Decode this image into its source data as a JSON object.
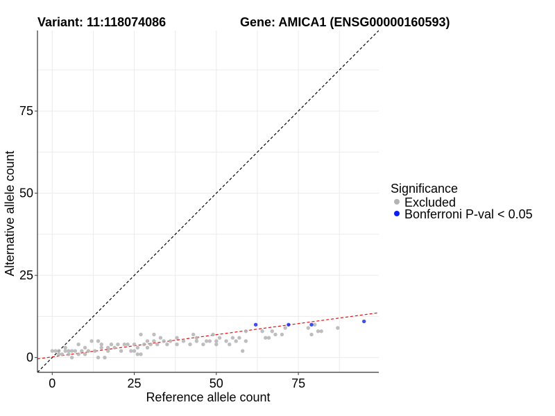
{
  "titles": {
    "variant": "Variant: 11:118074086",
    "gene": "Gene: AMICA1 (ENSG00000160593)"
  },
  "colors": {
    "excluded": "#b3b3b3",
    "significant": "#0a1eff",
    "identity_line": "#000000",
    "fit_line": "#ff0000",
    "grid": "#ebebeb"
  },
  "legend": {
    "title": "Significance",
    "items": [
      {
        "label": "Excluded",
        "color": "#b3b3b3"
      },
      {
        "label": "Bonferroni P-val < 0.05",
        "color": "#0a1eff"
      }
    ]
  },
  "chart_data": {
    "type": "scatter",
    "xlabel": "Reference allele count",
    "ylabel": "Alternative allele count",
    "xlim": [
      -4.5,
      99.5
    ],
    "ylim": [
      -4.5,
      99.5
    ],
    "x_ticks": [
      0,
      25,
      50,
      75
    ],
    "y_ticks": [
      0,
      25,
      50,
      75
    ],
    "grid": true,
    "legend_position": "right",
    "reference_lines": [
      {
        "name": "identity",
        "style": "dashed",
        "color": "#000000",
        "slope": 1,
        "intercept": 0
      },
      {
        "name": "fit",
        "style": "dashed",
        "color": "#ff0000",
        "slope": 0.135,
        "intercept": 0.2
      }
    ],
    "series": [
      {
        "name": "Excluded",
        "color": "#b3b3b3",
        "points": [
          [
            0,
            2
          ],
          [
            1,
            2
          ],
          [
            2,
            2
          ],
          [
            2,
            1
          ],
          [
            3,
            1
          ],
          [
            4,
            3
          ],
          [
            4,
            2
          ],
          [
            5,
            1
          ],
          [
            5,
            2
          ],
          [
            6,
            2
          ],
          [
            6,
            0
          ],
          [
            7,
            2
          ],
          [
            8,
            4
          ],
          [
            8,
            1
          ],
          [
            9,
            2
          ],
          [
            10,
            3
          ],
          [
            10,
            1
          ],
          [
            11,
            2
          ],
          [
            12,
            5
          ],
          [
            13,
            2
          ],
          [
            14,
            5
          ],
          [
            14,
            0
          ],
          [
            15,
            4
          ],
          [
            15,
            3
          ],
          [
            16,
            0
          ],
          [
            17,
            3
          ],
          [
            17,
            2
          ],
          [
            18,
            4
          ],
          [
            19,
            3
          ],
          [
            20,
            4
          ],
          [
            21,
            2
          ],
          [
            22,
            4
          ],
          [
            23,
            4
          ],
          [
            24,
            2
          ],
          [
            25,
            4
          ],
          [
            25,
            2
          ],
          [
            26,
            3
          ],
          [
            26,
            1
          ],
          [
            27,
            7
          ],
          [
            27,
            1
          ],
          [
            28,
            4
          ],
          [
            29,
            3
          ],
          [
            29,
            5
          ],
          [
            30,
            4
          ],
          [
            31,
            7
          ],
          [
            31,
            5
          ],
          [
            32,
            4
          ],
          [
            33,
            6
          ],
          [
            34,
            5
          ],
          [
            35,
            4
          ],
          [
            36,
            5
          ],
          [
            38,
            6
          ],
          [
            38,
            4
          ],
          [
            40,
            5
          ],
          [
            42,
            4
          ],
          [
            43,
            7
          ],
          [
            44,
            6
          ],
          [
            44,
            5
          ],
          [
            46,
            4
          ],
          [
            47,
            5
          ],
          [
            48,
            5
          ],
          [
            49,
            7
          ],
          [
            50,
            5
          ],
          [
            50,
            4
          ],
          [
            51,
            6
          ],
          [
            53,
            5
          ],
          [
            54,
            4
          ],
          [
            55,
            6
          ],
          [
            56,
            5
          ],
          [
            57,
            6
          ],
          [
            58,
            2
          ],
          [
            59,
            5
          ],
          [
            59,
            8
          ],
          [
            64,
            8
          ],
          [
            65,
            6
          ],
          [
            66,
            6
          ],
          [
            67,
            8
          ],
          [
            68,
            7
          ],
          [
            70,
            7
          ],
          [
            71,
            9
          ],
          [
            78,
            9
          ],
          [
            79,
            7
          ],
          [
            80,
            10
          ],
          [
            81,
            8
          ],
          [
            82,
            8
          ],
          [
            87,
            9
          ]
        ]
      },
      {
        "name": "Bonferroni P-val < 0.05",
        "color": "#0a1eff",
        "points": [
          [
            62,
            10
          ],
          [
            72,
            10
          ],
          [
            79,
            10
          ],
          [
            95,
            11
          ]
        ]
      }
    ]
  }
}
